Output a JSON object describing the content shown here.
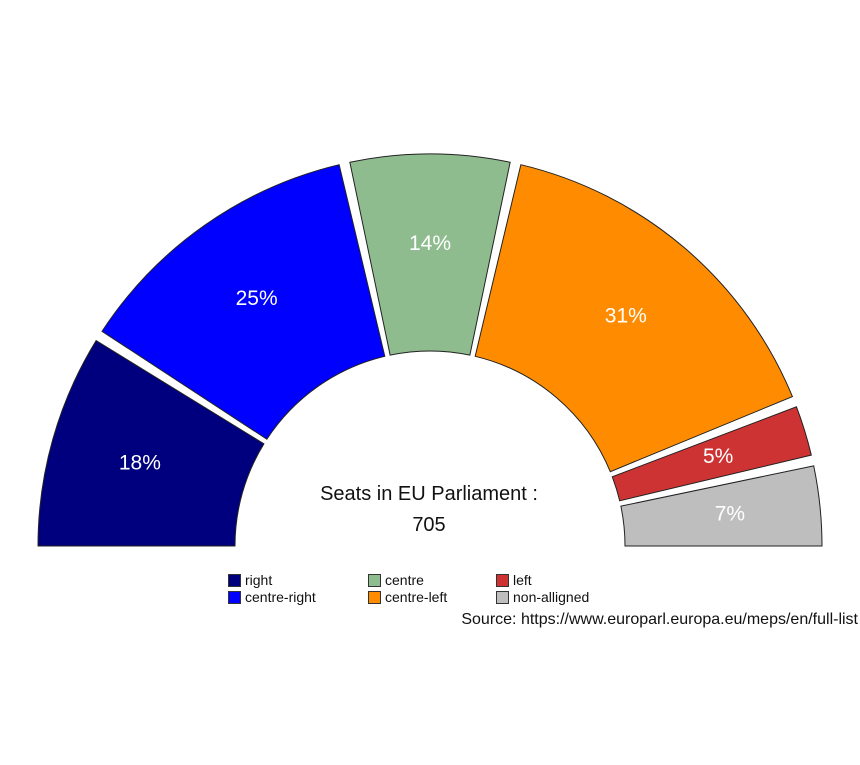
{
  "chart_data": {
    "type": "pie",
    "categories": [
      "right",
      "centre-right",
      "centre",
      "centre-left",
      "left",
      "non-alligned"
    ],
    "values": [
      18,
      25,
      14,
      31,
      5,
      7
    ],
    "labels": [
      "18%",
      "25%",
      "14%",
      "31%",
      "5%",
      "7%"
    ],
    "colors": [
      "#00007f",
      "#0000ff",
      "#8fbc8f",
      "#ff8c00",
      "#cd3333",
      "#bebebe"
    ],
    "center_title": "Seats in EU Parliament :",
    "center_value": "705",
    "legend_position": "bottom",
    "legend": [
      {
        "label": "right",
        "color": "#00007f"
      },
      {
        "label": "centre-right",
        "color": "#0000ff"
      },
      {
        "label": "centre",
        "color": "#8fbc8f"
      },
      {
        "label": "centre-left",
        "color": "#ff8c00"
      },
      {
        "label": "left",
        "color": "#cd3333"
      },
      {
        "label": "non-alligned",
        "color": "#bebebe"
      }
    ],
    "caption": "Source: https://www.europarl.europa.eu/meps/en/full-list"
  }
}
